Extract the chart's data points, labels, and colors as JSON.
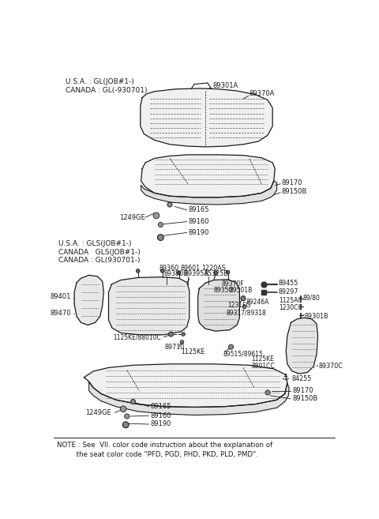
{
  "bg_color": "#ffffff",
  "line_color": "#1a1a1a",
  "text_color": "#1a1a1a",
  "note_line1": "NOTE : See  VII. color code instruction about the explanation of",
  "note_line2": "         the seat color code \"PFD, PGD, PHD, PKD, PLD, PMD\".",
  "header1_line1": "U.S.A. : GL(JOB#1-)",
  "header1_line2": "CANADA : GL(-930701)",
  "header2_line1": "U.S.A. : GLS(JOB#1-)",
  "header2_line2": "CANADA   GLS(JOB#1-)",
  "header2_line3": "CANADA : GL(930701-)"
}
